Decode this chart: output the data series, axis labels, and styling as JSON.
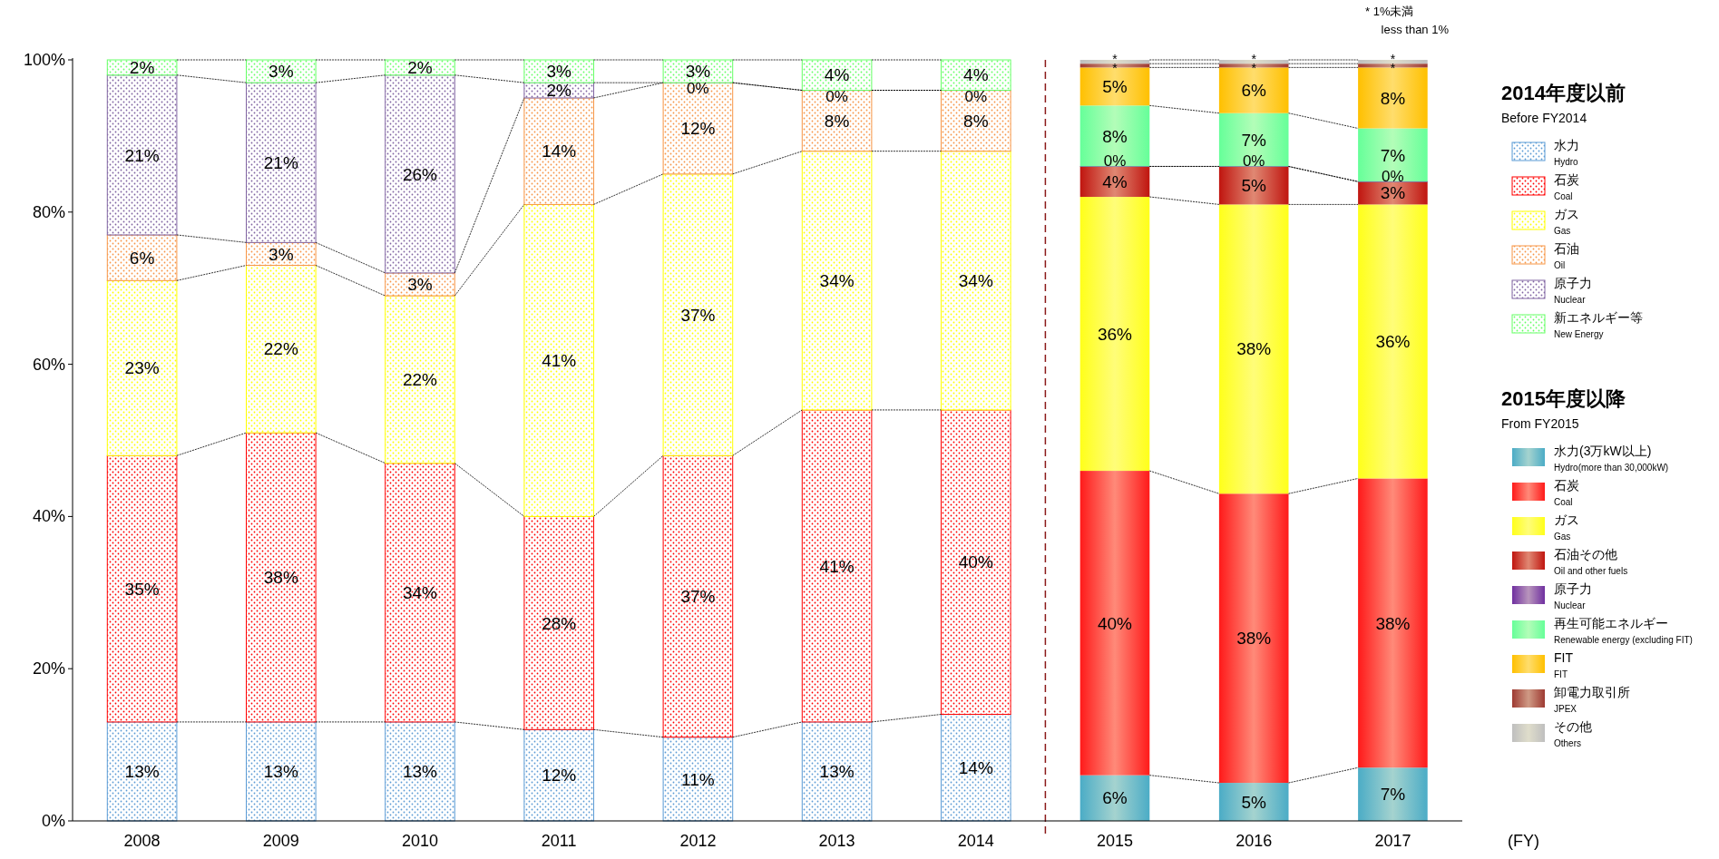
{
  "chart_data": {
    "type": "bar",
    "stacked": true,
    "categories": [
      "2008",
      "2009",
      "2010",
      "2011",
      "2012",
      "2013",
      "2014",
      "2015",
      "2016",
      "2017"
    ],
    "xlabel": "(FY)",
    "ylim": [
      0,
      100
    ],
    "yticks": [
      {
        "value": 0,
        "label": "0%"
      },
      {
        "value": 20,
        "label": "20%"
      },
      {
        "value": 40,
        "label": "40%"
      },
      {
        "value": 60,
        "label": "60%"
      },
      {
        "value": 80,
        "label": "80%"
      },
      {
        "value": 100,
        "label": "100%"
      }
    ],
    "legend": "right",
    "annotations": [
      "2014年度以前\nBefore FY2014",
      "2015年度以降\nFrom FY2015",
      "* 1%未満\nless than 1%"
    ],
    "series": [
      {
        "name": "水力\nHydro",
        "color": "#5b9bd5",
        "values": [
          13,
          13,
          13,
          12,
          11,
          13,
          14,
          null,
          null,
          null
        ],
        "value_labels": [
          "13%",
          "13%",
          "13%",
          "12%",
          "11%",
          "13%",
          "14%",
          null,
          null,
          null
        ]
      },
      {
        "name": "石炭\nCoal",
        "color": "#ff0000",
        "values": [
          35,
          38,
          34,
          28,
          37,
          41,
          40,
          null,
          null,
          null
        ],
        "value_labels": [
          "35%",
          "38%",
          "34%",
          "28%",
          "37%",
          "41%",
          "40%",
          null,
          null,
          null
        ]
      },
      {
        "name": "ガス\nGas",
        "color": "#ffff00",
        "values": [
          23,
          22,
          22,
          41,
          37,
          34,
          34,
          null,
          null,
          null
        ],
        "value_labels": [
          "23%",
          "22%",
          "22%",
          "41%",
          "37%",
          "34%",
          "34%",
          null,
          null,
          null
        ]
      },
      {
        "name": "石油\nOil",
        "color": "#f79646",
        "values": [
          6,
          3,
          3,
          14,
          12,
          8,
          8,
          null,
          null,
          null
        ],
        "value_labels": [
          "6%",
          "3%",
          "3%",
          "14%",
          "12%",
          "8%",
          "8%",
          null,
          null,
          null
        ]
      },
      {
        "name": "原子力\nNuclear",
        "color": "#8064a2",
        "values": [
          21,
          21,
          26,
          2,
          0,
          0,
          0,
          null,
          null,
          null
        ],
        "value_labels": [
          "21%",
          "21%",
          "26%",
          "2%",
          "0%",
          "0%",
          "0%",
          null,
          null,
          null
        ]
      },
      {
        "name": "新エネルギー等\nNew Energy",
        "color": "#66ff66",
        "values": [
          2,
          3,
          2,
          3,
          3,
          4,
          4,
          null,
          null,
          null
        ],
        "value_labels": [
          "2%",
          "3%",
          "2%",
          "3%",
          "3%",
          "4%",
          "4%",
          null,
          null,
          null
        ]
      },
      {
        "name": "水力(3万kW以上)\nHydro(more than 30,000kW)",
        "color": "#4bacc6",
        "values": [
          null,
          null,
          null,
          null,
          null,
          null,
          null,
          6,
          5,
          7
        ],
        "value_labels": [
          null,
          null,
          null,
          null,
          null,
          null,
          null,
          "6%",
          "5%",
          "7%"
        ]
      },
      {
        "name": "石炭\nCoal",
        "color": "#ff1a1a",
        "values": [
          null,
          null,
          null,
          null,
          null,
          null,
          null,
          40,
          38,
          38
        ],
        "value_labels": [
          null,
          null,
          null,
          null,
          null,
          null,
          null,
          "40%",
          "38%",
          "38%"
        ]
      },
      {
        "name": "ガス\nGas",
        "color": "#ffff1a",
        "values": [
          null,
          null,
          null,
          null,
          null,
          null,
          null,
          36,
          38,
          36
        ],
        "value_labels": [
          null,
          null,
          null,
          null,
          null,
          null,
          null,
          "36%",
          "38%",
          "36%"
        ]
      },
      {
        "name": "石油その他\nOil and other fuels",
        "color": "#c0150f",
        "values": [
          null,
          null,
          null,
          null,
          null,
          null,
          null,
          4,
          5,
          3
        ],
        "value_labels": [
          null,
          null,
          null,
          null,
          null,
          null,
          null,
          "4%",
          "5%",
          "3%"
        ]
      },
      {
        "name": "原子力\nNuclear",
        "color": "#7030a0",
        "values": [
          null,
          null,
          null,
          null,
          null,
          null,
          null,
          0,
          0,
          0
        ],
        "value_labels": [
          null,
          null,
          null,
          null,
          null,
          null,
          null,
          "0%",
          "0%",
          "0%"
        ]
      },
      {
        "name": "再生可能エネルギー\nRenewable energy (excluding FIT)",
        "color": "#66ff99",
        "values": [
          null,
          null,
          null,
          null,
          null,
          null,
          null,
          8,
          7,
          7
        ],
        "value_labels": [
          null,
          null,
          null,
          null,
          null,
          null,
          null,
          "8%",
          "7%",
          "7%"
        ]
      },
      {
        "name": "FIT\nFIT",
        "color": "#ffc000",
        "values": [
          null,
          null,
          null,
          null,
          null,
          null,
          null,
          5,
          6,
          8
        ],
        "value_labels": [
          null,
          null,
          null,
          null,
          null,
          null,
          null,
          "5%",
          "6%",
          "8%"
        ]
      },
      {
        "name": "卸電力取引所\nJPEX",
        "color": "#9e3a32",
        "values": [
          null,
          null,
          null,
          null,
          null,
          null,
          null,
          0.5,
          0.5,
          0.5
        ],
        "value_labels": [
          null,
          null,
          null,
          null,
          null,
          null,
          null,
          "*",
          "*",
          "*"
        ]
      },
      {
        "name": "その他\nOthers",
        "color": "#bfbfbf",
        "values": [
          null,
          null,
          null,
          null,
          null,
          null,
          null,
          0.5,
          0.5,
          0.5
        ],
        "value_labels": [
          null,
          null,
          null,
          null,
          null,
          null,
          null,
          "*",
          "*",
          "*"
        ]
      }
    ]
  }
}
